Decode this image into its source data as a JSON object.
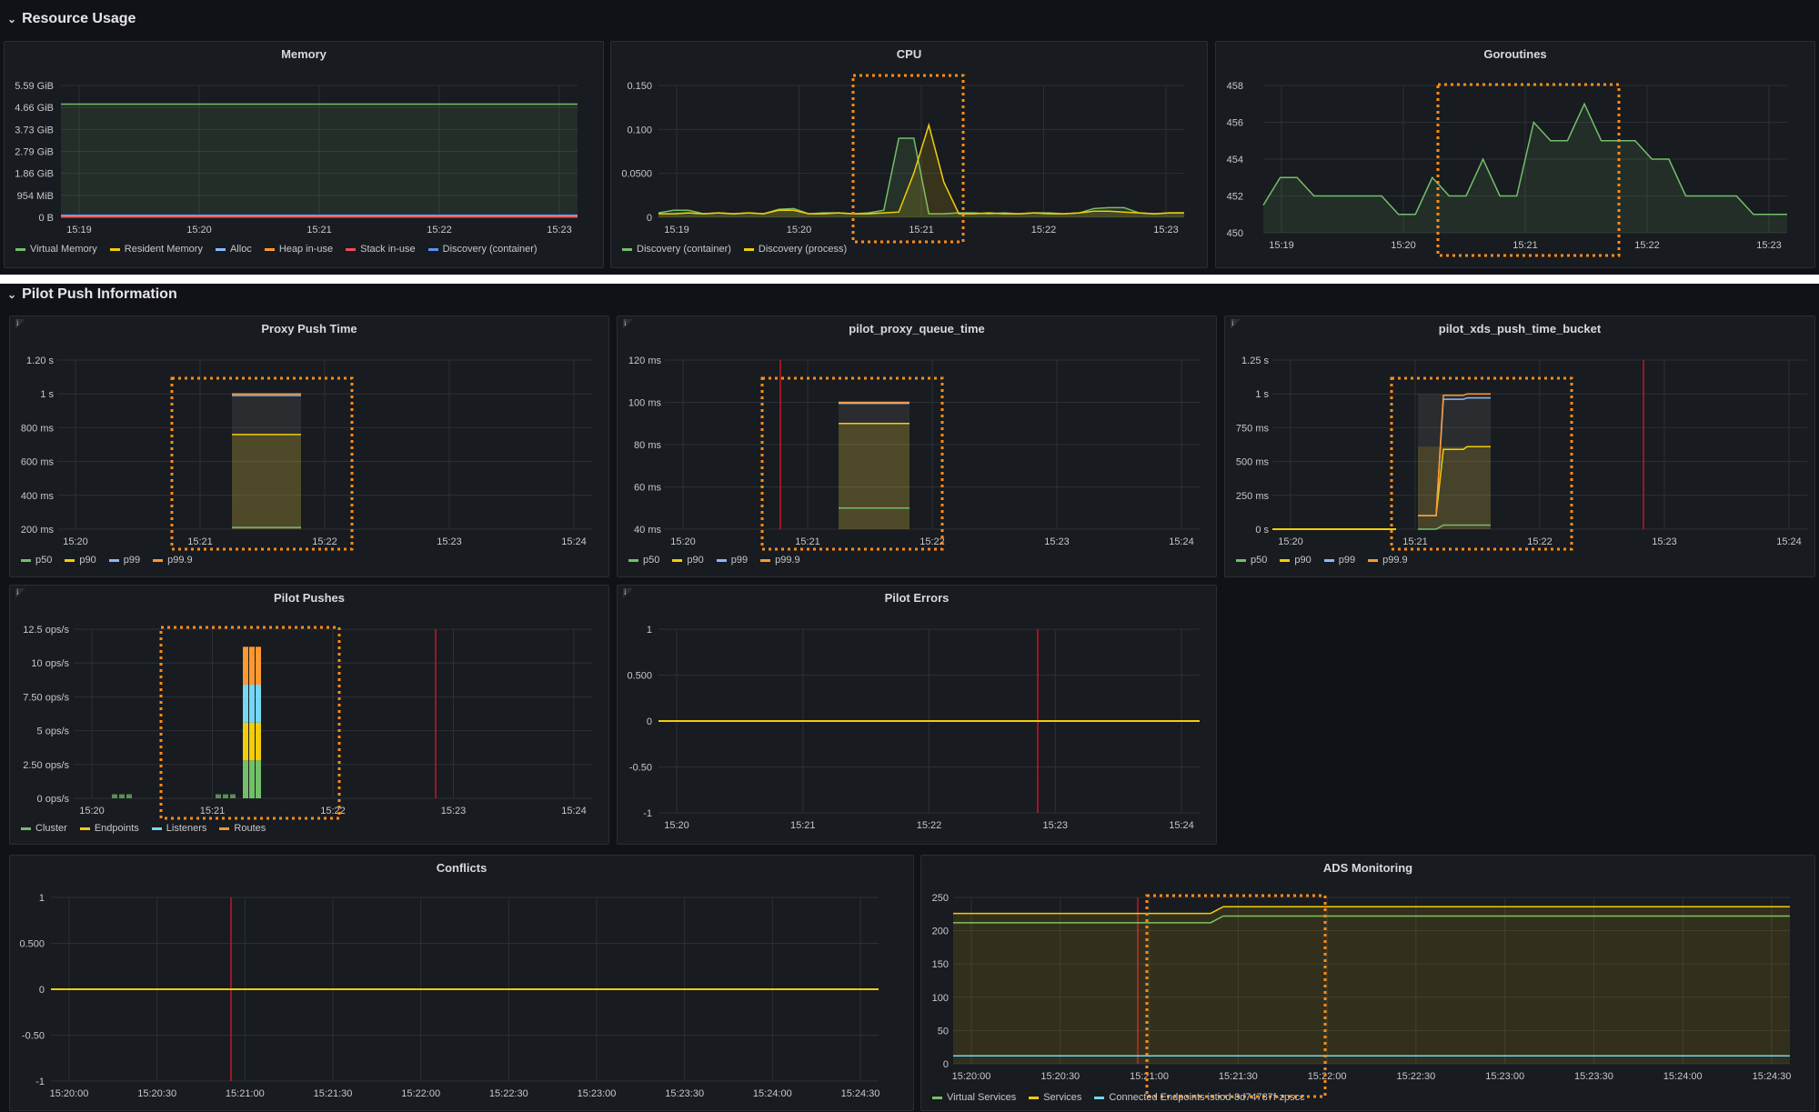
{
  "rows": {
    "resource_usage": "Resource Usage",
    "pilot_push": "Pilot Push Information"
  },
  "panels": {
    "memory": {
      "title": "Memory"
    },
    "cpu": {
      "title": "CPU"
    },
    "goroutines": {
      "title": "Goroutines"
    },
    "proxy_push_time": {
      "title": "Proxy Push Time"
    },
    "pilot_proxy_queue_time": {
      "title": "pilot_proxy_queue_time"
    },
    "pilot_xds_push_time_bucket": {
      "title": "pilot_xds_push_time_bucket"
    },
    "pilot_pushes": {
      "title": "Pilot Pushes"
    },
    "pilot_errors": {
      "title": "Pilot Errors"
    },
    "conflicts": {
      "title": "Conflicts"
    },
    "ads_monitoring": {
      "title": "ADS Monitoring"
    }
  },
  "colors": {
    "green": "#73bf69",
    "yellow": "#f2cc0c",
    "blue": "#5794f2",
    "cyan": "#8ab8ff",
    "orange": "#ff9830",
    "red": "#f2495c",
    "lightblue": "#73d7f5",
    "highlight": "#ff8c1a",
    "redline": "#c4162a"
  },
  "chart_data": [
    {
      "id": "memory",
      "type": "area",
      "yticks": [
        "5.59 GiB",
        "4.66 GiB",
        "3.73 GiB",
        "2.79 GiB",
        "1.86 GiB",
        "954 MiB",
        "0 B"
      ],
      "xticks": [
        "15:19",
        "15:20",
        "15:21",
        "15:22",
        "15:23"
      ],
      "series": [
        {
          "name": "Virtual Memory",
          "color": "#73bf69",
          "value_gib": 4.8
        },
        {
          "name": "Resident Memory",
          "color": "#f2cc0c",
          "value_gib": 0.08
        },
        {
          "name": "Alloc",
          "color": "#8ab8ff",
          "value_gib": 0.05
        },
        {
          "name": "Heap in-use",
          "color": "#ff9830",
          "value_gib": 0.06
        },
        {
          "name": "Stack in-use",
          "color": "#f2495c",
          "value_gib": 0.01
        },
        {
          "name": "Discovery (container)",
          "color": "#5794f2",
          "value_gib": 0.09
        }
      ]
    },
    {
      "id": "cpu",
      "type": "line",
      "yticks": [
        "0.150",
        "0.100",
        "0.0500",
        "0"
      ],
      "xticks": [
        "15:19",
        "15:20",
        "15:21",
        "15:22",
        "15:23"
      ],
      "series": [
        {
          "name": "Discovery (container)",
          "color": "#73bf69",
          "values": [
            0.005,
            0.008,
            0.008,
            0.004,
            0.005,
            0.004,
            0.005,
            0.004,
            0.009,
            0.01,
            0.004,
            0.005,
            0.005,
            0.004,
            0.005,
            0.008,
            0.09,
            0.09,
            0.004,
            0.004,
            0.005,
            0.005,
            0.004,
            0.005,
            0.004,
            0.005,
            0.005,
            0.004,
            0.005,
            0.01,
            0.011,
            0.011,
            0.005,
            0.004,
            0.005,
            0.005
          ]
        },
        {
          "name": "Discovery (process)",
          "color": "#f2cc0c",
          "values": [
            0.004,
            0.004,
            0.005,
            0.004,
            0.005,
            0.004,
            0.005,
            0.004,
            0.008,
            0.008,
            0.004,
            0.004,
            0.005,
            0.004,
            0.004,
            0.005,
            0.006,
            0.05,
            0.105,
            0.04,
            0.004,
            0.004,
            0.005,
            0.004,
            0.004,
            0.005,
            0.004,
            0.004,
            0.005,
            0.007,
            0.007,
            0.006,
            0.005,
            0.004,
            0.005,
            0.005
          ]
        }
      ]
    },
    {
      "id": "goroutines",
      "type": "area",
      "yticks": [
        "458",
        "456",
        "454",
        "452",
        "450"
      ],
      "xticks": [
        "15:19",
        "15:20",
        "15:21",
        "15:22",
        "15:23"
      ],
      "series": [
        {
          "name": "goroutines",
          "color": "#73bf69",
          "values": [
            451.5,
            453,
            453,
            452,
            452,
            452,
            452,
            452,
            451,
            451,
            453,
            452,
            452,
            454,
            452,
            452,
            456,
            455,
            455,
            457,
            455,
            455,
            455,
            454,
            454,
            452,
            452,
            452,
            452,
            451,
            451,
            451
          ]
        }
      ]
    },
    {
      "id": "proxy_push_time",
      "type": "area",
      "yticks": [
        "1.20 s",
        "1 s",
        "800 ms",
        "600 ms",
        "400 ms",
        "200 ms"
      ],
      "xticks": [
        "15:20",
        "15:21",
        "15:22",
        "15:23",
        "15:24"
      ],
      "series": [
        {
          "name": "p50",
          "color": "#73bf69"
        },
        {
          "name": "p90",
          "color": "#f2cc0c"
        },
        {
          "name": "p99",
          "color": "#8ab8ff"
        },
        {
          "name": "p99.9",
          "color": "#ff9830"
        }
      ],
      "band": {
        "from": "15:21:15",
        "to": "15:21:55",
        "p50_ms": 210,
        "p90_ms": 760,
        "p99_ms": 990,
        "p999_ms": 1000
      }
    },
    {
      "id": "pilot_proxy_queue_time",
      "type": "area",
      "yticks": [
        "120 ms",
        "100 ms",
        "80 ms",
        "60 ms",
        "40 ms"
      ],
      "xticks": [
        "15:20",
        "15:21",
        "15:22",
        "15:23",
        "15:24"
      ],
      "series": [
        {
          "name": "p50",
          "color": "#73bf69"
        },
        {
          "name": "p90",
          "color": "#f2cc0c"
        },
        {
          "name": "p99",
          "color": "#8ab8ff"
        },
        {
          "name": "p99.9",
          "color": "#ff9830"
        }
      ],
      "band": {
        "from": "15:21:15",
        "to": "15:21:55",
        "p50_ms": 50,
        "p90_ms": 90,
        "p99_ms": 99.5,
        "p999_ms": 100
      }
    },
    {
      "id": "pilot_xds_push_time_bucket",
      "type": "area",
      "yticks": [
        "1.25 s",
        "1 s",
        "750 ms",
        "500 ms",
        "250 ms",
        "0 s"
      ],
      "xticks": [
        "15:20",
        "15:21",
        "15:22",
        "15:23",
        "15:24"
      ],
      "series": [
        {
          "name": "p50",
          "color": "#73bf69"
        },
        {
          "name": "p90",
          "color": "#f2cc0c"
        },
        {
          "name": "p99",
          "color": "#8ab8ff"
        },
        {
          "name": "p99.9",
          "color": "#ff9830"
        }
      ]
    },
    {
      "id": "pilot_pushes",
      "type": "bar",
      "yticks": [
        "12.5 ops/s",
        "10 ops/s",
        "7.50 ops/s",
        "5 ops/s",
        "2.50 ops/s",
        "0 ops/s"
      ],
      "xticks": [
        "15:20",
        "15:21",
        "15:22",
        "15:23",
        "15:24"
      ],
      "series": [
        {
          "name": "Cluster",
          "color": "#73bf69"
        },
        {
          "name": "Endpoints",
          "color": "#f2cc0c"
        },
        {
          "name": "Listeners",
          "color": "#73d7f5"
        },
        {
          "name": "Routes",
          "color": "#ff9830"
        }
      ],
      "stacks": [
        2.8,
        2.8,
        2.8,
        2.8
      ]
    },
    {
      "id": "pilot_errors",
      "type": "line",
      "yticks": [
        "1",
        "0.500",
        "0",
        "-0.50",
        "-1"
      ],
      "xticks": [
        "15:20",
        "15:21",
        "15:22",
        "15:23",
        "15:24"
      ],
      "series": [
        {
          "name": "errors",
          "color": "#f2cc0c",
          "values": [
            0,
            0
          ]
        }
      ]
    },
    {
      "id": "conflicts",
      "type": "line",
      "yticks": [
        "1",
        "0.500",
        "0",
        "-0.50",
        "-1"
      ],
      "xticks": [
        "15:20:00",
        "15:20:30",
        "15:21:00",
        "15:21:30",
        "15:22:00",
        "15:22:30",
        "15:23:00",
        "15:23:30",
        "15:24:00",
        "15:24:30"
      ],
      "series": [
        {
          "name": "conflicts",
          "color": "#f2cc0c",
          "values": [
            0,
            0
          ]
        }
      ]
    },
    {
      "id": "ads_monitoring",
      "type": "area",
      "yticks": [
        "250",
        "200",
        "150",
        "100",
        "50",
        "0"
      ],
      "xticks": [
        "15:20:00",
        "15:20:30",
        "15:21:00",
        "15:21:30",
        "15:22:00",
        "15:22:30",
        "15:23:00",
        "15:23:30",
        "15:24:00",
        "15:24:30"
      ],
      "series": [
        {
          "name": "Virtual Services",
          "color": "#73bf69",
          "before": 212,
          "after": 222
        },
        {
          "name": "Services",
          "color": "#f2cc0c",
          "before": 226,
          "after": 236
        },
        {
          "name": "Connected Endpoints istiod-8d74787f-zpscc",
          "color": "#73d7f5",
          "before": 12,
          "after": 12
        }
      ]
    }
  ]
}
